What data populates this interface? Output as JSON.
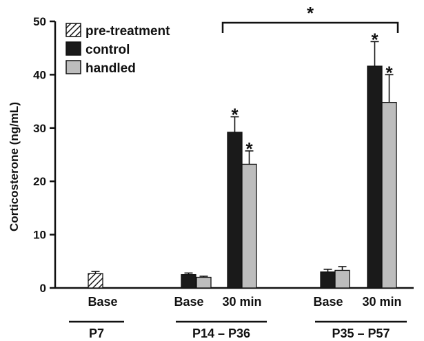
{
  "chart_data": {
    "type": "bar",
    "ylabel": "Corticosterone (ng/mL)",
    "ylim": [
      0,
      50
    ],
    "yticks": [
      0,
      10,
      20,
      30,
      40,
      50
    ],
    "grid": false,
    "legend_position": "top-left",
    "series": [
      {
        "name": "pre-treatment",
        "pattern": "hatched",
        "color": "#ffffff"
      },
      {
        "name": "control",
        "color": "#1a1a1a"
      },
      {
        "name": "handled",
        "color": "#bdbdbd"
      }
    ],
    "bars": [
      {
        "group": "P7",
        "category": "Base",
        "series": "pre-treatment",
        "value": 2.7,
        "error": 0.4,
        "significant": false
      },
      {
        "group": "P14 – P36",
        "category": "Base",
        "series": "control",
        "value": 2.5,
        "error": 0.3,
        "significant": false
      },
      {
        "group": "P14 – P36",
        "category": "Base",
        "series": "handled",
        "value": 2.0,
        "error": 0.2,
        "significant": false
      },
      {
        "group": "P14 – P36",
        "category": "30 min",
        "series": "control",
        "value": 29.2,
        "error": 2.9,
        "significant": true
      },
      {
        "group": "P14 – P36",
        "category": "30 min",
        "series": "handled",
        "value": 23.2,
        "error": 2.5,
        "significant": true
      },
      {
        "group": "P35 – P57",
        "category": "Base",
        "series": "control",
        "value": 3.0,
        "error": 0.5,
        "significant": false
      },
      {
        "group": "P35 – P57",
        "category": "Base",
        "series": "handled",
        "value": 3.3,
        "error": 0.7,
        "significant": false
      },
      {
        "group": "P35 – P57",
        "category": "30 min",
        "series": "control",
        "value": 41.6,
        "error": 4.6,
        "significant": true
      },
      {
        "group": "P35 – P57",
        "category": "30 min",
        "series": "handled",
        "value": 34.8,
        "error": 5.2,
        "significant": true
      }
    ],
    "categories": [
      "Base",
      "Base",
      "30 min",
      "Base",
      "30 min"
    ],
    "groups": [
      "P7",
      "P14 – P36",
      "P35 – P57"
    ],
    "significance_bracket": {
      "label": "*",
      "from": "P14 – P36 30 min",
      "to": "P35 – P57 30 min"
    },
    "significance_marker": "*"
  }
}
